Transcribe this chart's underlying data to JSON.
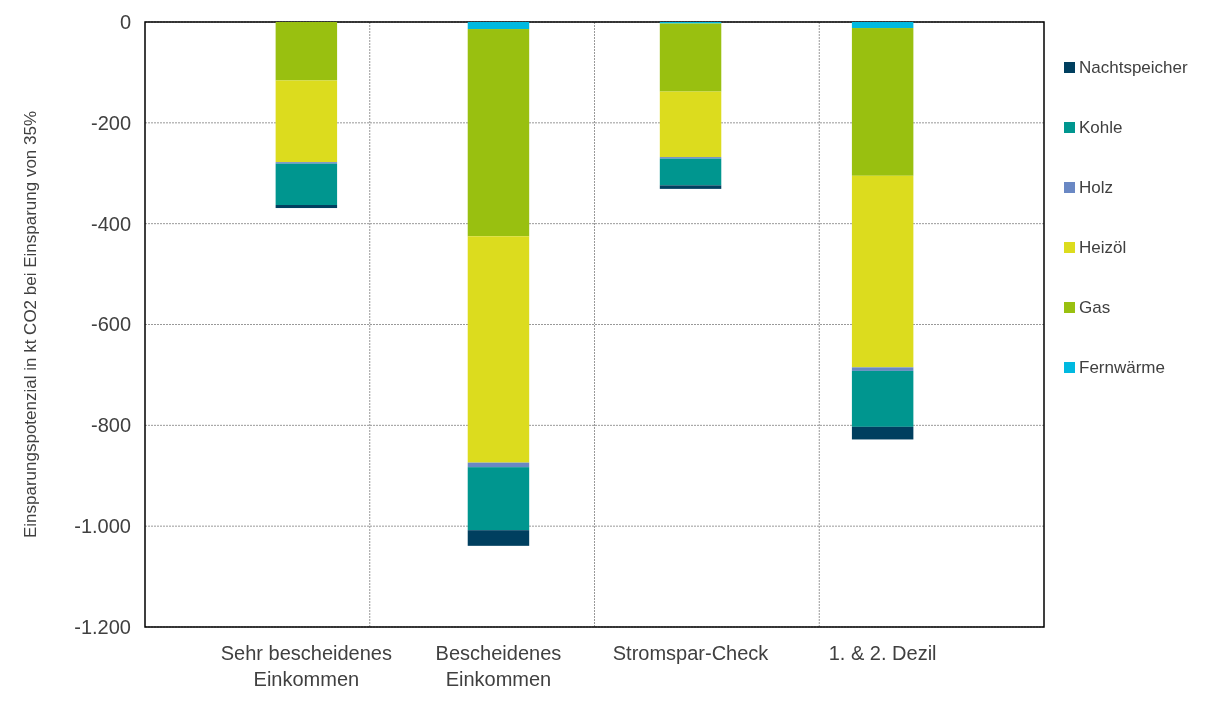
{
  "chart_data": {
    "type": "bar",
    "stacked": true,
    "ylabel": "Einsparungspotenzial in kt CO2 bei Einsparung von 35%",
    "categories": [
      "Sehr bescheidenes Einkommen",
      "Bescheidenes Einkommen",
      "Stromspar-Check",
      "1. & 2. Dezil"
    ],
    "series": [
      {
        "name": "Fernwärme",
        "color": "#00b9e0",
        "values": [
          0,
          -14,
          -3,
          -12
        ]
      },
      {
        "name": "Gas",
        "color": "#99c010",
        "values": [
          -116,
          -411,
          -135,
          -293
        ]
      },
      {
        "name": "Heizöl",
        "color": "#dcdc1e",
        "values": [
          -162,
          -449,
          -130,
          -380
        ]
      },
      {
        "name": "Holz",
        "color": "#6a88c4",
        "values": [
          -3,
          -9,
          -3,
          -7
        ]
      },
      {
        "name": "Kohle",
        "color": "#00968f",
        "values": [
          -82,
          -125,
          -53,
          -111
        ]
      },
      {
        "name": "Nachtspeicher",
        "color": "#003f5f",
        "values": [
          -6,
          -31,
          -7,
          -25
        ]
      }
    ],
    "ylim": [
      -1200,
      0
    ],
    "yticks": [
      0,
      -200,
      -400,
      -600,
      -800,
      {
        "value": -1000,
        "label": "-1.000"
      },
      {
        "value": -1200,
        "label": "-1.200"
      }
    ],
    "grid": true,
    "legend": "right"
  }
}
